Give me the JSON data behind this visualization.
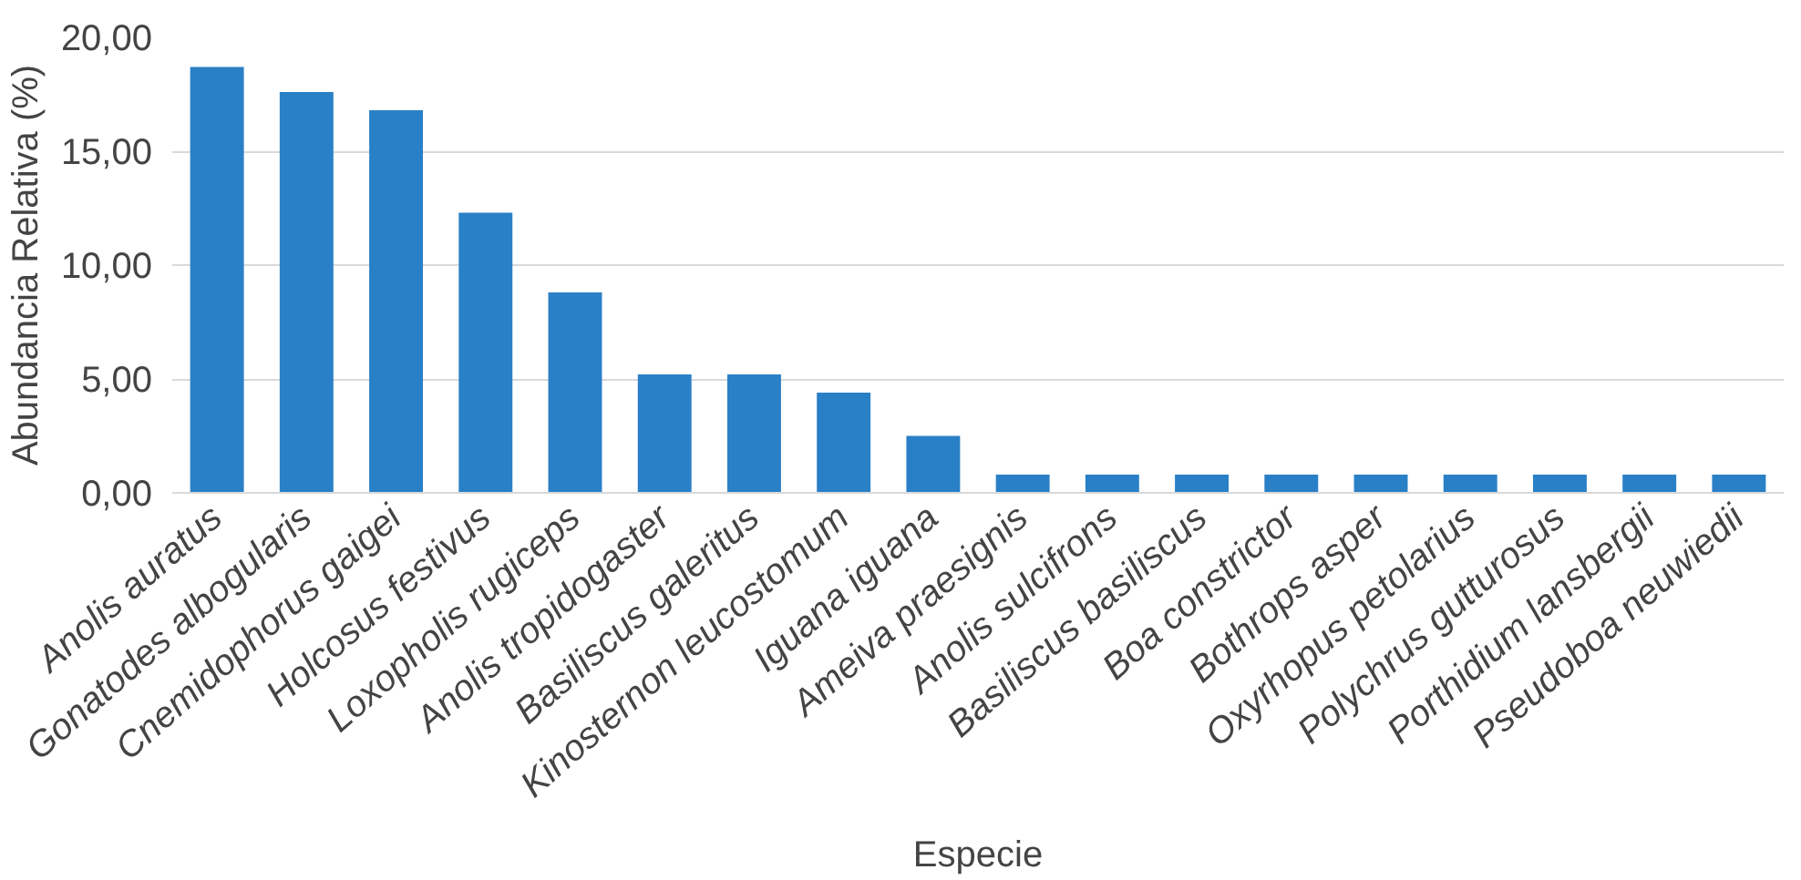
{
  "chart_data": {
    "type": "bar",
    "xlabel": "Especie",
    "ylabel": "Abundancia Relativa (%)",
    "categories": [
      "Anolis auratus",
      "Gonatodes albogularis",
      "Cnemidophorus gaigei",
      "Holcosus festivus",
      "Loxopholis rugiceps",
      "Anolis tropidogaster",
      "Basiliscus galeritus",
      "Kinosternon leucostomum",
      "Iguana iguana",
      "Ameiva praesignis",
      "Anolis sulcifrons",
      "Basiliscus basiliscus",
      "Boa constrictor",
      "Bothrops asper",
      "Oxyrhopus petolarius",
      "Polychrus gutturosus",
      "Porthidium lansbergii",
      "Pseudoboa neuwiedii"
    ],
    "values": [
      18.7,
      17.6,
      16.8,
      12.3,
      8.8,
      5.2,
      5.2,
      4.4,
      2.5,
      0.8,
      0.8,
      0.8,
      0.8,
      0.8,
      0.8,
      0.8,
      0.8,
      0.8
    ],
    "color": "#2a80c6",
    "ylim": [
      0,
      20
    ],
    "yticks": [
      {
        "value": 0,
        "label": "0,00"
      },
      {
        "value": 5,
        "label": "5,00"
      },
      {
        "value": 10,
        "label": "10,00"
      },
      {
        "value": 15,
        "label": "15,00"
      },
      {
        "value": 20,
        "label": "20,00"
      }
    ],
    "grid": "y"
  }
}
